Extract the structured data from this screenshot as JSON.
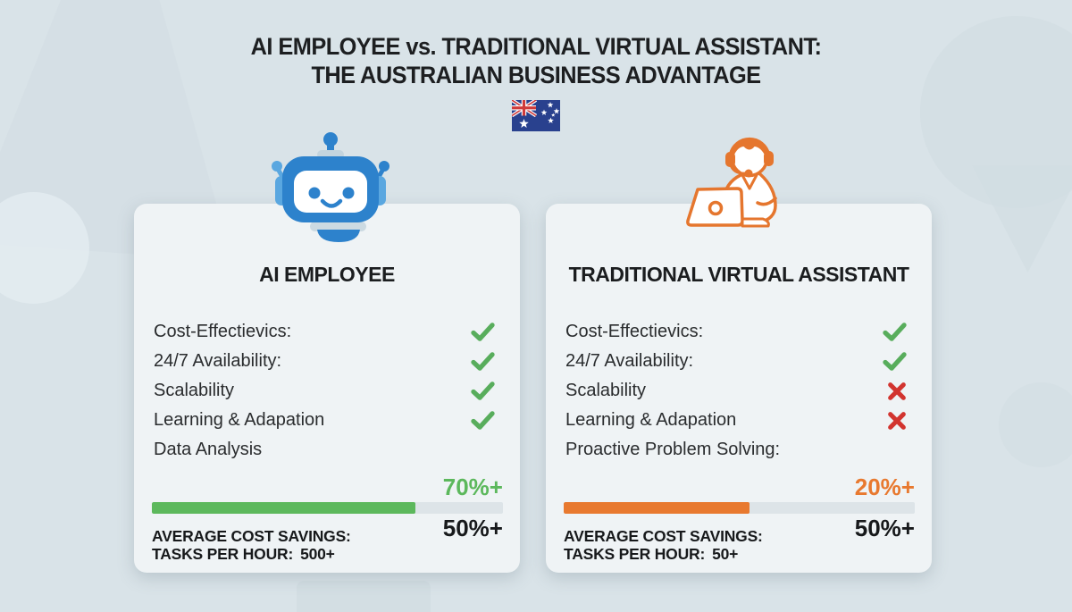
{
  "header": {
    "title_line1": "AI EMPLOYEE vs. TRADITIONAL VIRTUAL ASSISTANT:",
    "title_line2": "THE AUSTRALIAN BUSINESS ADVANTAGE",
    "flag": "australian-flag"
  },
  "colors": {
    "background": "#d9e3e8",
    "card": "#eff3f5",
    "check": "#58ad5c",
    "cross": "#d2342f",
    "ai_accent": "#2d82cc",
    "va_accent": "#e5762e",
    "bar_track": "#dde4e8"
  },
  "cards": [
    {
      "title": "AI EMPLOYEE",
      "icon": "robot-icon",
      "features": [
        {
          "label": "Cost-Effectievics:",
          "mark": "check"
        },
        {
          "label": "24/7 Availability:",
          "mark": "check"
        },
        {
          "label": "Scalability",
          "mark": "check"
        },
        {
          "label": "Learning & Adapation",
          "mark": "check"
        },
        {
          "label": "Data Analysis",
          "mark": "none"
        }
      ],
      "progress": {
        "label": "70%+",
        "percent": 75,
        "color": "#5cb85c",
        "secondary": "50%+"
      },
      "stats": [
        {
          "label": "AVERAGE COST SAVINGS:",
          "value": ""
        },
        {
          "label": "TASKS PER HOUR:",
          "value": "500+"
        }
      ]
    },
    {
      "title": "TRADITIONAL VIRTUAL ASSISTANT",
      "icon": "support-agent-icon",
      "features": [
        {
          "label": "Cost-Effectievics:",
          "mark": "check"
        },
        {
          "label": "24/7 Availability:",
          "mark": "check"
        },
        {
          "label": "Scalability",
          "mark": "cross"
        },
        {
          "label": "Learning & Adapation",
          "mark": "cross"
        },
        {
          "label": "Proactive Problem Solving:",
          "mark": "none"
        }
      ],
      "progress": {
        "label": "20%+",
        "percent": 53,
        "color": "#e8792f",
        "secondary": "50%+"
      },
      "stats": [
        {
          "label": "AVERAGE COST SAVINGS:",
          "value": ""
        },
        {
          "label": "TASKS PER HOUR:",
          "value": "50+"
        }
      ]
    }
  ]
}
